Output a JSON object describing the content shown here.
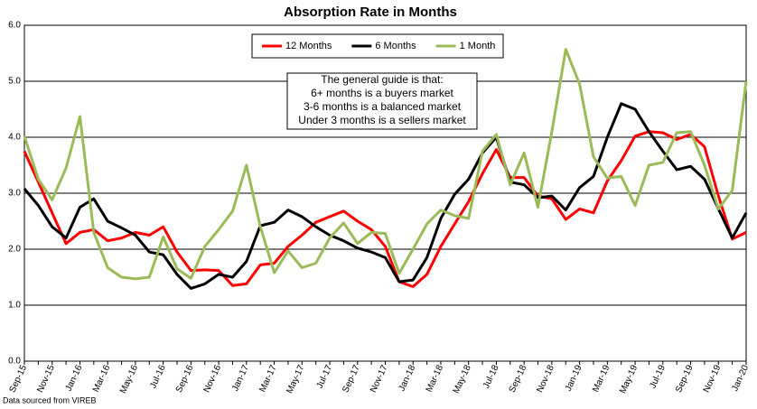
{
  "chart_data": {
    "type": "line",
    "title": "Absorption Rate in Months",
    "annotation": [
      "The general guide is that:",
      "6+ months is a buyers market",
      "3-6 months is a balanced market",
      "Under 3 months is a sellers market"
    ],
    "source": "Data sourced from VIREB",
    "categories": [
      "Sep-15",
      null,
      "Nov-15",
      null,
      "Jan-16",
      null,
      "Mar-16",
      null,
      "May-16",
      null,
      "Jul-16",
      null,
      "Sep-16",
      null,
      "Nov-16",
      null,
      "Jan-17",
      null,
      "Mar-17",
      null,
      "May-17",
      null,
      "Jul-17",
      null,
      "Sep-17",
      null,
      "Nov-17",
      null,
      "Jan-18",
      null,
      "Mar-18",
      null,
      "May-18",
      null,
      "Jul-18",
      null,
      "Sep-18",
      null,
      "Nov-18",
      null,
      "Jan-19",
      null,
      "Mar-19",
      null,
      "May-19",
      null,
      "Jul-19",
      null,
      "Sep-19",
      null,
      "Nov-19",
      null,
      "Jan-20"
    ],
    "series": [
      {
        "name": "12 Months",
        "color": "#ff0000",
        "values": [
          3.75,
          3.2,
          2.65,
          2.1,
          2.3,
          2.35,
          2.15,
          2.2,
          2.3,
          2.25,
          2.4,
          1.95,
          1.62,
          1.63,
          1.62,
          1.35,
          1.38,
          1.72,
          1.75,
          2.05,
          2.25,
          2.48,
          2.58,
          2.68,
          2.5,
          2.35,
          2.05,
          1.42,
          1.33,
          1.55,
          2.05,
          2.45,
          2.85,
          3.35,
          3.78,
          3.28,
          3.28,
          2.95,
          2.9,
          2.53,
          2.72,
          2.65,
          3.22,
          3.58,
          4.02,
          4.1,
          4.08,
          3.96,
          4.05,
          3.83,
          2.95,
          2.18,
          2.3
        ]
      },
      {
        "name": "6 Months",
        "color": "#000000",
        "values": [
          3.08,
          2.78,
          2.4,
          2.2,
          2.75,
          2.9,
          2.5,
          2.38,
          2.25,
          1.95,
          1.9,
          1.55,
          1.3,
          1.38,
          1.55,
          1.5,
          1.78,
          2.42,
          2.48,
          2.7,
          2.58,
          2.4,
          2.25,
          2.15,
          2.02,
          1.95,
          1.85,
          1.42,
          1.45,
          1.85,
          2.55,
          2.98,
          3.25,
          3.72,
          4.0,
          3.2,
          3.15,
          2.92,
          2.95,
          2.7,
          3.1,
          3.3,
          4.0,
          4.6,
          4.5,
          4.1,
          3.75,
          3.42,
          3.48,
          3.25,
          2.72,
          2.2,
          2.65
        ]
      },
      {
        "name": "1 Month",
        "color": "#9bbb59",
        "values": [
          4.02,
          3.25,
          2.88,
          3.45,
          4.37,
          2.3,
          1.67,
          1.5,
          1.47,
          1.5,
          2.22,
          1.65,
          1.48,
          2.05,
          2.35,
          2.68,
          3.5,
          2.4,
          1.58,
          1.97,
          1.67,
          1.75,
          2.2,
          2.47,
          2.1,
          2.3,
          2.28,
          1.57,
          2.0,
          2.45,
          2.7,
          2.6,
          2.55,
          3.75,
          4.05,
          3.15,
          3.72,
          2.75,
          4.1,
          5.57,
          4.95,
          3.65,
          3.27,
          3.3,
          2.78,
          3.5,
          3.55,
          4.08,
          4.1,
          3.5,
          2.72,
          3.05,
          5.0
        ]
      }
    ],
    "ylim": [
      0,
      6
    ],
    "yticks": [
      {
        "value": 0,
        "label": "0.0"
      },
      {
        "value": 1,
        "label": "1.0"
      },
      {
        "value": 2,
        "label": "2.0"
      },
      {
        "value": 3,
        "label": "3.0"
      },
      {
        "value": 4,
        "label": "4.0"
      },
      {
        "value": 5,
        "label": "5.0"
      },
      {
        "value": 6,
        "label": "6.0"
      }
    ],
    "grid": true,
    "legend": "top"
  }
}
